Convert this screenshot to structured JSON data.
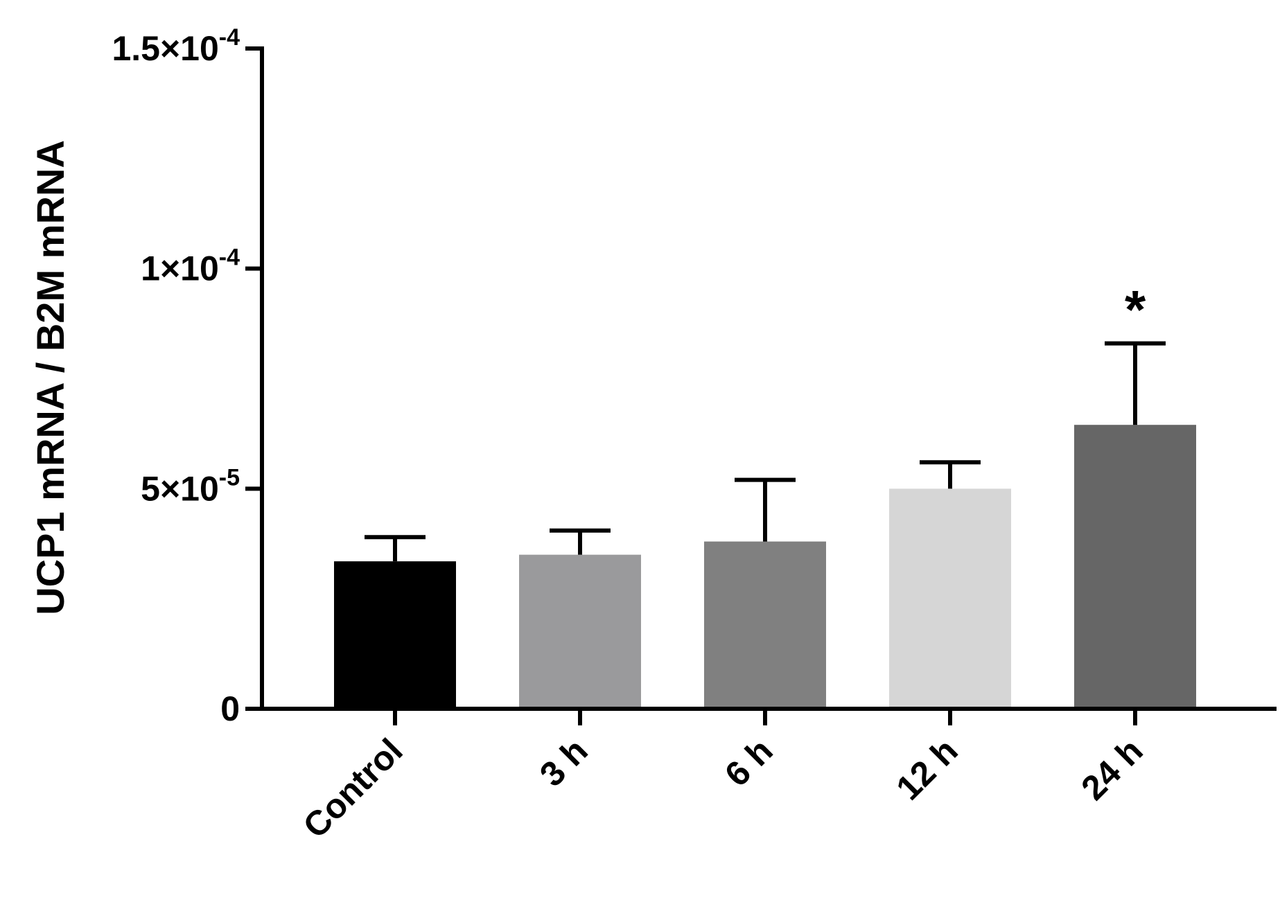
{
  "chart_data": {
    "type": "bar",
    "title": "",
    "xlabel": "",
    "ylabel": "UCP1 mRNA / B2M mRNA",
    "ylim": [
      0,
      0.00015
    ],
    "y_ticks": [
      {
        "value": 0,
        "mantissa": "0",
        "exponent": ""
      },
      {
        "value": 5e-05,
        "mantissa": "5×10",
        "exponent": "-5"
      },
      {
        "value": 0.0001,
        "mantissa": "1×10",
        "exponent": "-4"
      },
      {
        "value": 0.00015,
        "mantissa": "1.5×10",
        "exponent": "-4"
      }
    ],
    "categories": [
      "Control",
      "3 h",
      "6 h",
      "12 h",
      "24 h"
    ],
    "values": [
      3.35e-05,
      3.5e-05,
      3.8e-05,
      5e-05,
      6.45e-05
    ],
    "error_upper": [
      3.9e-05,
      4.05e-05,
      5.2e-05,
      5.6e-05,
      8.3e-05
    ],
    "colors": [
      "#000000",
      "#9a9a9c",
      "#808080",
      "#d6d6d6",
      "#666666"
    ],
    "annotations": [
      {
        "category": "24 h",
        "text": "*"
      }
    ],
    "grid": false,
    "legend": "none"
  }
}
